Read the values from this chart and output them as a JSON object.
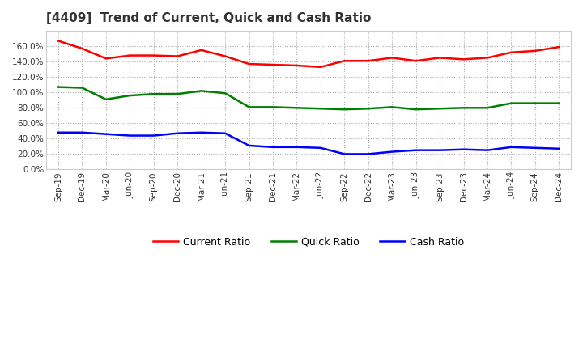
{
  "title": "[4409]  Trend of Current, Quick and Cash Ratio",
  "x_labels": [
    "Sep-19",
    "Dec-19",
    "Mar-20",
    "Jun-20",
    "Sep-20",
    "Dec-20",
    "Mar-21",
    "Jun-21",
    "Sep-21",
    "Dec-21",
    "Mar-22",
    "Jun-22",
    "Sep-22",
    "Dec-22",
    "Mar-23",
    "Jun-23",
    "Sep-23",
    "Dec-23",
    "Mar-24",
    "Jun-24",
    "Sep-24",
    "Dec-24"
  ],
  "current_ratio": [
    1.67,
    1.57,
    1.44,
    1.48,
    1.48,
    1.47,
    1.55,
    1.47,
    1.37,
    1.36,
    1.35,
    1.33,
    1.41,
    1.41,
    1.45,
    1.41,
    1.45,
    1.43,
    1.45,
    1.52,
    1.54,
    1.59
  ],
  "quick_ratio": [
    1.07,
    1.06,
    0.91,
    0.96,
    0.98,
    0.98,
    1.02,
    0.99,
    0.81,
    0.81,
    0.8,
    0.79,
    0.78,
    0.79,
    0.81,
    0.78,
    0.79,
    0.8,
    0.8,
    0.86,
    0.86,
    0.86
  ],
  "cash_ratio": [
    0.48,
    0.48,
    0.46,
    0.44,
    0.44,
    0.47,
    0.48,
    0.47,
    0.31,
    0.29,
    0.29,
    0.28,
    0.2,
    0.2,
    0.23,
    0.25,
    0.25,
    0.26,
    0.25,
    0.29,
    0.28,
    0.27
  ],
  "current_color": "#ff0000",
  "quick_color": "#008000",
  "cash_color": "#0000ff",
  "ylim": [
    0.0,
    1.8
  ],
  "yticks": [
    0.0,
    0.2,
    0.4,
    0.6,
    0.8,
    1.0,
    1.2,
    1.4,
    1.6
  ],
  "background_color": "#ffffff",
  "plot_bg_color": "#ffffff",
  "grid_color": "#aaaaaa",
  "line_width": 1.8,
  "title_fontsize": 11,
  "tick_fontsize": 7.5,
  "legend_fontsize": 9
}
